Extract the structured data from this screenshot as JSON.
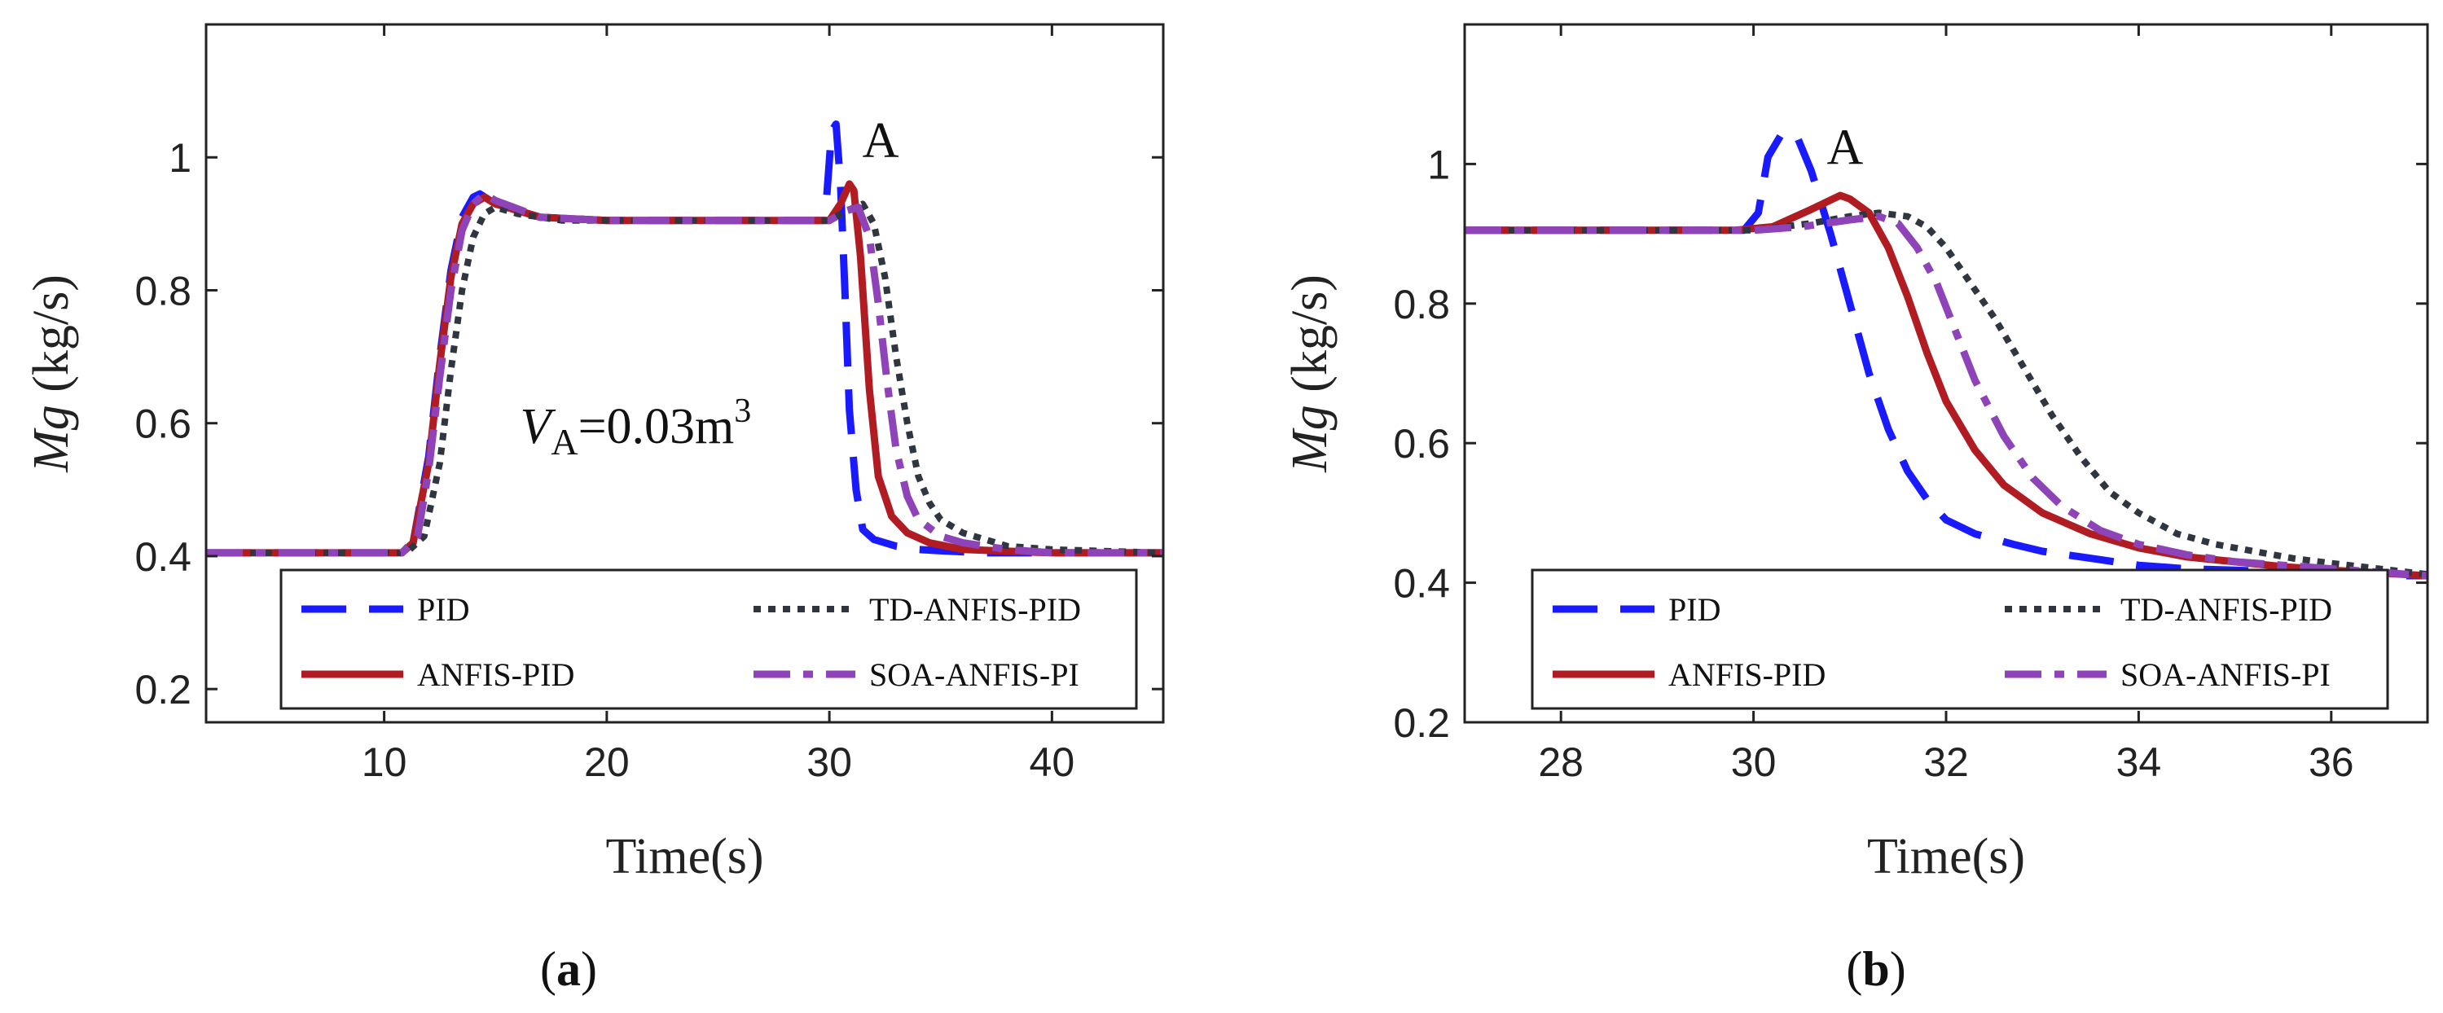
{
  "captions": [
    {
      "open": "(",
      "letter": "a",
      "close": ")"
    },
    {
      "open": "(",
      "letter": "b",
      "close": ")"
    }
  ],
  "legend_styles": [
    {
      "name": "PID",
      "color": "#1a1aff",
      "dash": "55,28",
      "width": 9
    },
    {
      "name": "ANFIS-PID",
      "color": "#b01c22",
      "dash": "",
      "width": 9
    },
    {
      "name": "TD-ANFIS-PID",
      "color": "#2f3640",
      "dash": "9,9",
      "width": 8
    },
    {
      "name": "SOA-ANFIS-PI",
      "color": "#8e44b8",
      "dash": "45,16,12,16",
      "width": 9
    }
  ],
  "chart_data": [
    {
      "type": "line",
      "title": "",
      "xlabel": "Time(s)",
      "ylabel_italic": "Mg",
      "ylabel_rest": " (kg/s)",
      "xlim": [
        2,
        45
      ],
      "ylim": [
        0.15,
        1.2
      ],
      "xticks": [
        10,
        20,
        30,
        40
      ],
      "yticks": [
        0.2,
        0.4,
        0.6,
        0.8,
        1
      ],
      "grid": false,
      "legend_position": "bottom",
      "annotations": [
        {
          "text": "A",
          "x": 32.3,
          "y": 1.0
        },
        {
          "text": "V",
          "sub": "A",
          "rest": "=0.03m",
          "sup": "3",
          "x": 21.3,
          "y": 0.57
        }
      ],
      "series": [
        {
          "name": "PID",
          "x": [
            2,
            10.8,
            11.3,
            12,
            12.5,
            13,
            13.5,
            14,
            14.3,
            15,
            17,
            20,
            25,
            29.8,
            30.1,
            30.3,
            30.5,
            30.7,
            30.9,
            31.2,
            31.5,
            32,
            33,
            34,
            35,
            37,
            40,
            45
          ],
          "y": [
            0.405,
            0.405,
            0.42,
            0.55,
            0.7,
            0.83,
            0.91,
            0.94,
            0.945,
            0.93,
            0.91,
            0.905,
            0.905,
            0.905,
            1.04,
            1.05,
            0.96,
            0.8,
            0.62,
            0.5,
            0.44,
            0.425,
            0.415,
            0.41,
            0.408,
            0.405,
            0.405,
            0.405
          ]
        },
        {
          "name": "ANFIS-PID",
          "x": [
            2,
            10.8,
            11.3,
            12,
            12.5,
            13,
            13.5,
            14,
            14.5,
            15,
            17,
            20,
            25,
            30,
            30.5,
            30.9,
            31.1,
            31.4,
            31.8,
            32.2,
            32.8,
            33.5,
            34.5,
            36,
            40,
            45
          ],
          "y": [
            0.405,
            0.405,
            0.42,
            0.54,
            0.69,
            0.82,
            0.9,
            0.93,
            0.94,
            0.93,
            0.91,
            0.905,
            0.905,
            0.905,
            0.93,
            0.96,
            0.95,
            0.85,
            0.65,
            0.52,
            0.46,
            0.435,
            0.42,
            0.41,
            0.405,
            0.405
          ]
        },
        {
          "name": "TD-ANFIS-PID",
          "x": [
            2,
            11,
            11.8,
            12.5,
            13,
            13.5,
            14,
            14.5,
            15,
            16,
            18,
            20,
            25,
            30,
            30.8,
            31.5,
            32,
            32.5,
            33,
            33.5,
            34,
            34.5,
            35,
            36,
            37,
            38,
            40,
            45
          ],
          "y": [
            0.405,
            0.405,
            0.43,
            0.54,
            0.68,
            0.8,
            0.88,
            0.915,
            0.925,
            0.915,
            0.905,
            0.905,
            0.905,
            0.905,
            0.92,
            0.93,
            0.9,
            0.82,
            0.7,
            0.6,
            0.52,
            0.48,
            0.455,
            0.435,
            0.425,
            0.415,
            0.41,
            0.405
          ]
        },
        {
          "name": "SOA-ANFIS-PI",
          "x": [
            2,
            10.8,
            11.5,
            12,
            12.5,
            13,
            13.5,
            14,
            14.5,
            15,
            17,
            20,
            25,
            30,
            30.8,
            31.3,
            31.8,
            32.2,
            32.6,
            33,
            33.5,
            34,
            35,
            36,
            38,
            40,
            45
          ],
          "y": [
            0.405,
            0.405,
            0.43,
            0.53,
            0.67,
            0.8,
            0.89,
            0.93,
            0.945,
            0.935,
            0.91,
            0.905,
            0.905,
            0.905,
            0.92,
            0.925,
            0.88,
            0.78,
            0.66,
            0.56,
            0.49,
            0.455,
            0.43,
            0.42,
            0.41,
            0.405,
            0.405
          ]
        }
      ]
    },
    {
      "type": "line",
      "title": "",
      "xlabel": "Time(s)",
      "ylabel_italic": "Mg",
      "ylabel_rest": " (kg/s)",
      "xlim": [
        27,
        37
      ],
      "ylim": [
        0.2,
        1.2
      ],
      "xticks": [
        28,
        30,
        32,
        34,
        36
      ],
      "yticks": [
        0.2,
        0.4,
        0.6,
        0.8,
        1
      ],
      "grid": false,
      "legend_position": "bottom",
      "annotations": [
        {
          "text": "A",
          "x": 30.95,
          "y": 1.0
        }
      ],
      "series": [
        {
          "name": "PID",
          "x": [
            27,
            29.9,
            30.05,
            30.15,
            30.3,
            30.45,
            30.6,
            30.8,
            31,
            31.2,
            31.4,
            31.6,
            31.8,
            32,
            32.3,
            32.7,
            33,
            33.5,
            34,
            34.5,
            35,
            35.5,
            36,
            36.5,
            37
          ],
          "y": [
            0.905,
            0.905,
            0.93,
            1.01,
            1.045,
            1.04,
            0.99,
            0.9,
            0.8,
            0.7,
            0.62,
            0.56,
            0.52,
            0.49,
            0.47,
            0.455,
            0.445,
            0.435,
            0.425,
            0.42,
            0.418,
            0.415,
            0.413,
            0.41,
            0.41
          ]
        },
        {
          "name": "ANFIS-PID",
          "x": [
            27,
            29.8,
            30.2,
            30.6,
            30.9,
            31,
            31.2,
            31.4,
            31.6,
            31.8,
            32,
            32.3,
            32.6,
            33,
            33.5,
            34,
            34.5,
            35,
            35.5,
            36,
            37
          ],
          "y": [
            0.905,
            0.905,
            0.91,
            0.935,
            0.955,
            0.95,
            0.93,
            0.88,
            0.81,
            0.73,
            0.66,
            0.59,
            0.54,
            0.5,
            0.47,
            0.45,
            0.437,
            0.43,
            0.423,
            0.418,
            0.41
          ]
        },
        {
          "name": "TD-ANFIS-PID",
          "x": [
            27,
            30,
            30.6,
            31,
            31.3,
            31.6,
            31.8,
            32,
            32.2,
            32.5,
            32.8,
            33.1,
            33.4,
            33.7,
            34,
            34.4,
            34.8,
            35.2,
            35.6,
            36,
            36.5,
            37
          ],
          "y": [
            0.905,
            0.905,
            0.915,
            0.925,
            0.93,
            0.925,
            0.91,
            0.88,
            0.84,
            0.78,
            0.71,
            0.64,
            0.58,
            0.53,
            0.5,
            0.47,
            0.455,
            0.445,
            0.435,
            0.428,
            0.42,
            0.412
          ]
        },
        {
          "name": "SOA-ANFIS-PI",
          "x": [
            27,
            30,
            30.5,
            31,
            31.3,
            31.5,
            31.7,
            31.9,
            32.1,
            32.3,
            32.6,
            32.9,
            33.2,
            33.6,
            34,
            34.5,
            35,
            35.5,
            36,
            37
          ],
          "y": [
            0.905,
            0.905,
            0.91,
            0.92,
            0.925,
            0.915,
            0.88,
            0.83,
            0.76,
            0.69,
            0.61,
            0.55,
            0.51,
            0.475,
            0.455,
            0.44,
            0.43,
            0.425,
            0.42,
            0.41
          ]
        }
      ]
    }
  ]
}
